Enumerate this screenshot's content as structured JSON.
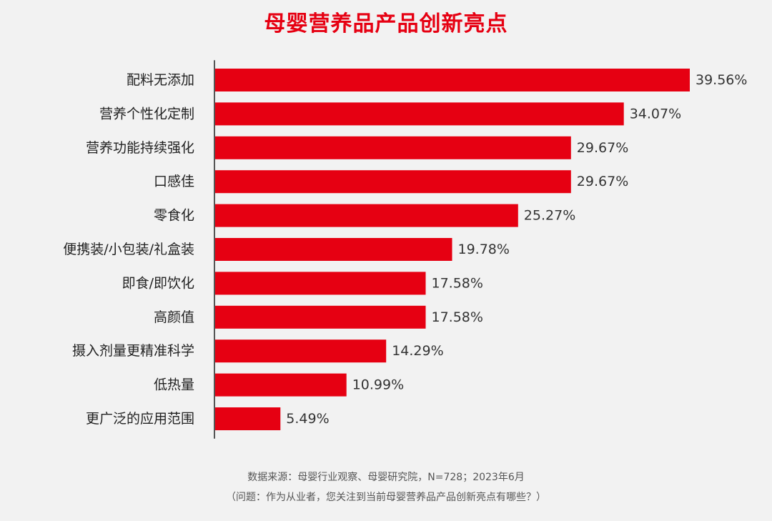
{
  "title": "母婴营养品产品创新亮点",
  "colors": {
    "bar": "#e60012",
    "title": "#e60012",
    "background": "#f2f2f2",
    "axis": "#555555"
  },
  "chart_data": {
    "type": "bar",
    "orientation": "horizontal",
    "title": "母婴营养品产品创新亮点",
    "categories": [
      "配料无添加",
      "营养个性化定制",
      "营养功能持续强化",
      "口感佳",
      "零食化",
      "便携装/小包装/礼盒装",
      "即食/即饮化",
      "高颜值",
      "摄入剂量更精准科学",
      "低热量",
      "更广泛的应用范围"
    ],
    "values": [
      39.56,
      34.07,
      29.67,
      29.67,
      25.27,
      19.78,
      17.58,
      17.58,
      14.29,
      10.99,
      5.49
    ],
    "value_labels": [
      "39.56%",
      "34.07%",
      "29.67%",
      "29.67%",
      "25.27%",
      "19.78%",
      "17.58%",
      "17.58%",
      "14.29%",
      "10.99%",
      "5.49%"
    ],
    "unit": "%",
    "xlim": [
      0,
      39.56
    ],
    "grid": false,
    "legend": "none"
  },
  "footer": {
    "source": "数据来源：母婴行业观察、母婴研究院，N=728；2023年6月",
    "question": "（问题：作为从业者，您关注到当前母婴营养品产品创新亮点有哪些？）"
  }
}
